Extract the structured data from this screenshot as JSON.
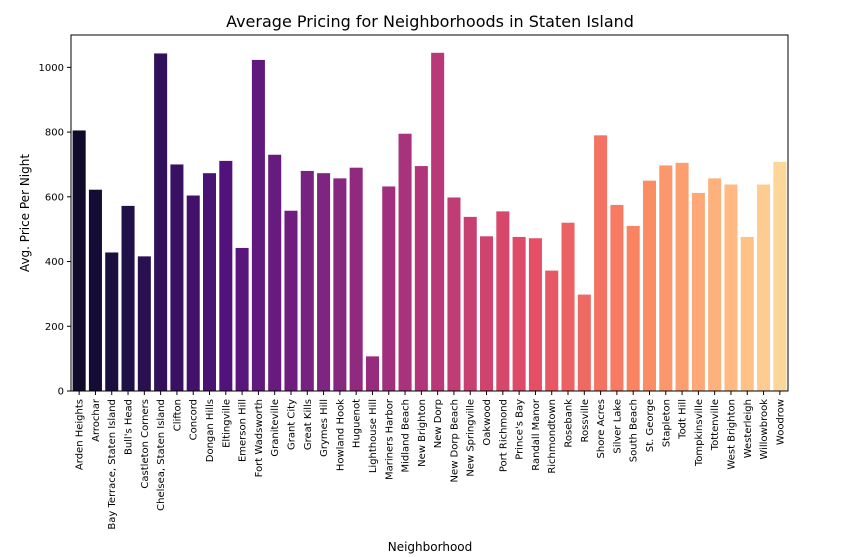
{
  "chart_data": {
    "type": "bar",
    "title": "Average Pricing for Neighborhoods in Staten Island",
    "xlabel": "Neighborhood",
    "ylabel": "Avg. Price Per Night",
    "ylim": [
      0,
      1100
    ],
    "yticks": [
      0,
      200,
      400,
      600,
      800,
      1000
    ],
    "grid": false,
    "palette": "magma",
    "categories": [
      "Arden Heights",
      "Arrochar",
      "Bay Terrace, Staten Island",
      "Bull's Head",
      "Castleton Corners",
      "Chelsea, Staten Island",
      "Clifton",
      "Concord",
      "Dongan Hills",
      "Eltingville",
      "Emerson Hill",
      "Fort Wadsworth",
      "Graniteville",
      "Grant City",
      "Great Kills",
      "Grymes Hill",
      "Howland Hook",
      "Huguenot",
      "Lighthouse Hill",
      "Mariners Harbor",
      "Midland Beach",
      "New Brighton",
      "New Dorp",
      "New Dorp Beach",
      "New Springville",
      "Oakwood",
      "Port Richmond",
      "Prince's Bay",
      "Randall Manor",
      "Richmondtown",
      "Rosebank",
      "Rossville",
      "Shore Acres",
      "Silver Lake",
      "South Beach",
      "St. George",
      "Stapleton",
      "Todt Hill",
      "Tompkinsville",
      "Tottenville",
      "West Brighton",
      "Westerleigh",
      "Willowbrook",
      "Woodrow"
    ],
    "values": [
      805,
      622,
      428,
      572,
      416,
      1043,
      700,
      604,
      673,
      711,
      442,
      1023,
      730,
      557,
      680,
      673,
      657,
      690,
      107,
      632,
      795,
      695,
      1045,
      598,
      538,
      478,
      555,
      476,
      472,
      372,
      520,
      298,
      790,
      575,
      510,
      650,
      697,
      705,
      612,
      657,
      638,
      476,
      638,
      708
    ]
  }
}
